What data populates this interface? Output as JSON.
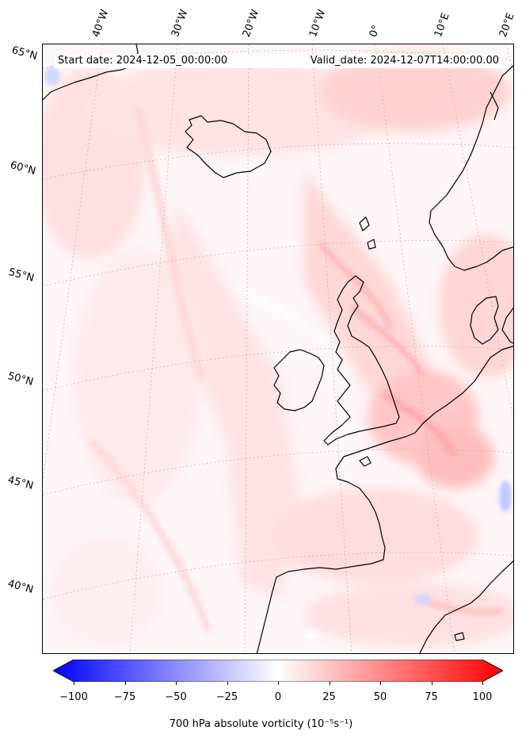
{
  "header": {
    "start_date": "Start date: 2024-12-05_00:00:00",
    "valid_date": "Valid_date: 2024-12-07T14:00:00.00"
  },
  "latitude_labels": [
    "65°N",
    "60°N",
    "55°N",
    "50°N",
    "45°N",
    "40°N"
  ],
  "longitude_labels": [
    "40°W",
    "30°W",
    "20°W",
    "10°W",
    "0°",
    "10°E",
    "20°E"
  ],
  "colorbar": {
    "ticks": [
      "−100",
      "−75",
      "−50",
      "−25",
      "0",
      "25",
      "50",
      "75",
      "100"
    ],
    "min": -100,
    "max": 100,
    "label": "700 hPa absolute vorticity (10⁻⁵s⁻¹)",
    "cmap_low": "#0000ff",
    "cmap_mid": "#ffffff",
    "cmap_high": "#ff0000"
  },
  "map": {
    "variable": "700 hPa absolute vorticity",
    "region": "North Atlantic and Western Europe",
    "coastline_color": "#000000",
    "gridline_color": "#b0b0b0"
  }
}
